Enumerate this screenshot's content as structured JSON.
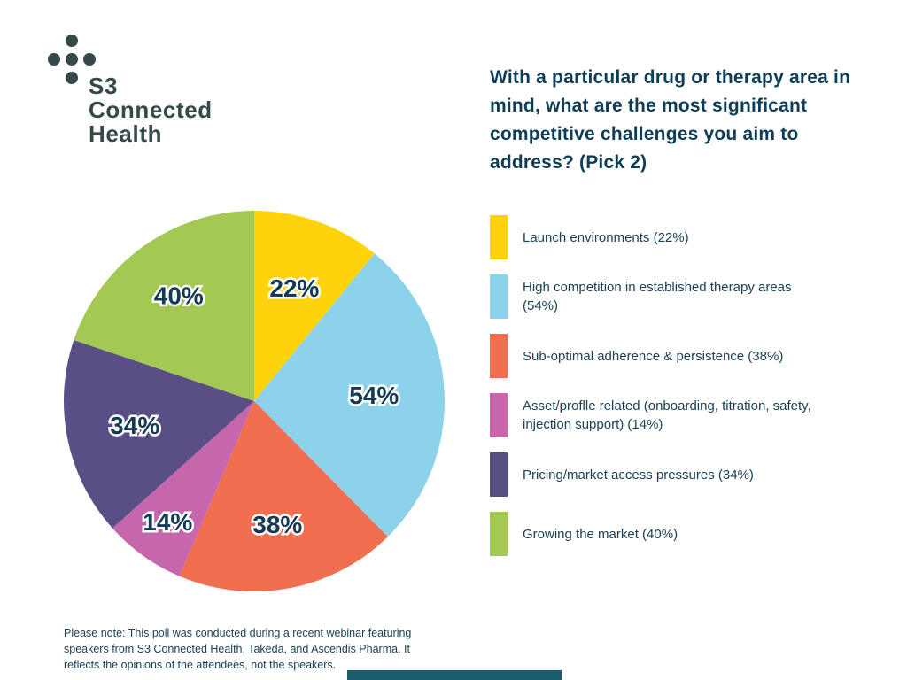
{
  "logo": {
    "wordmark": "S3\nConnected\nHealth",
    "color": "#35494B"
  },
  "title": "With a particular drug or therapy area in mind, what are the most significant competitive challenges you aim to address? (Pick 2)",
  "chart_data": {
    "type": "pie",
    "title": "With a particular drug or therapy area in mind, what are the most significant competitive challenges you aim to address? (Pick 2)",
    "direction": "clockwise",
    "start_angle_deg": 0,
    "slices": [
      {
        "label": "Launch environments",
        "value": 22,
        "data_label": "22%",
        "color": "#FFD30B"
      },
      {
        "label": "High competition in established therapy areas",
        "value": 54,
        "data_label": "54%",
        "color": "#8DD2EB"
      },
      {
        "label": "Sub-optimal adherence & persistence",
        "value": 38,
        "data_label": "38%",
        "color": "#EF6F50"
      },
      {
        "label": "Asset/proflle related (onboarding, titration, safety, injection support)",
        "value": 14,
        "data_label": "14%",
        "color": "#C666AC"
      },
      {
        "label": "Pricing/market access pressures",
        "value": 34,
        "data_label": "34%",
        "color": "#5A4F84"
      },
      {
        "label": "Growing the market",
        "value": 40,
        "data_label": "40%",
        "color": "#A3C853"
      }
    ],
    "legend_position": "right",
    "data_label_color": "#143A56"
  },
  "legend": {
    "items": [
      {
        "label": "Launch environments (22%)",
        "color": "#FFD30B"
      },
      {
        "label": "High competition in established therapy areas (54%)",
        "color": "#8DD2EB"
      },
      {
        "label": "Sub-optimal adherence & persistence (38%)",
        "color": "#EF6F50"
      },
      {
        "label": "Asset/proflle related (onboarding, titration, safety, injection support) (14%)",
        "color": "#C666AC"
      },
      {
        "label": "Pricing/market access pressures (34%)",
        "color": "#5A4F84"
      },
      {
        "label": "Growing the market (40%)",
        "color": "#A3C853"
      }
    ]
  },
  "footnote": "Please note: This poll was conducted during a recent webinar featuring speakers from S3 Connected Health, Takeda, and Ascendis Pharma. It reflects the opinions of the attendees, not the speakers.",
  "footer_bar_color": "#1A5B6E"
}
